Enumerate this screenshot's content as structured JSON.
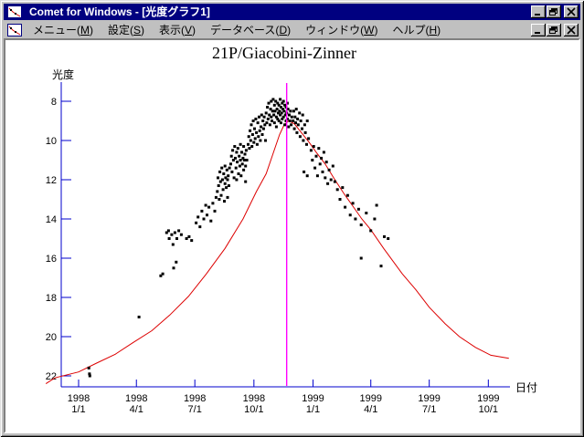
{
  "window": {
    "title": "Comet for Windows - [光度グラフ1]",
    "titlebar_buttons": [
      "minimize",
      "restore",
      "close"
    ],
    "menubar_buttons": [
      "minimize",
      "restore",
      "close"
    ],
    "app_icon": "comet-lightcurve-chart"
  },
  "menu": {
    "items": [
      {
        "key": "menu",
        "label": "メニュー(M)"
      },
      {
        "key": "settings",
        "label": "設定(S)"
      },
      {
        "key": "view",
        "label": "表示(V)"
      },
      {
        "key": "database",
        "label": "データベース(D)"
      },
      {
        "key": "window",
        "label": "ウィンドウ(W)"
      },
      {
        "key": "help",
        "label": "ヘルプ(H)"
      }
    ]
  },
  "chart_data": {
    "type": "scatter",
    "title": "21P/Giacobini-Zinner",
    "xlabel": "日付",
    "ylabel": "光度",
    "y_inverted": true,
    "ylim": [
      7.0,
      22.6
    ],
    "y_ticks": [
      8,
      10,
      12,
      14,
      16,
      18,
      20,
      22
    ],
    "x_ticks": [
      {
        "year": "1998",
        "md": "1/1",
        "day": 0
      },
      {
        "year": "1998",
        "md": "4/1",
        "day": 90
      },
      {
        "year": "1998",
        "md": "7/1",
        "day": 181
      },
      {
        "year": "1998",
        "md": "10/1",
        "day": 273
      },
      {
        "year": "1999",
        "md": "1/1",
        "day": 365
      },
      {
        "year": "1999",
        "md": "4/1",
        "day": 455
      },
      {
        "year": "1999",
        "md": "7/1",
        "day": 546
      },
      {
        "year": "1999",
        "md": "10/1",
        "day": 638
      }
    ],
    "colors": {
      "axis": "#0000cc",
      "tick_text": "#000000",
      "points": "#000000",
      "model_curve": "#dd0000",
      "event_line": "#ff00ff",
      "titlebar": "#000080"
    },
    "event_line_day": 324,
    "model_curve": [
      [
        -51,
        22.4
      ],
      [
        -37,
        22.1
      ],
      [
        0,
        21.8
      ],
      [
        28,
        21.35
      ],
      [
        57,
        20.9
      ],
      [
        85,
        20.3
      ],
      [
        114,
        19.7
      ],
      [
        142,
        18.9
      ],
      [
        171,
        17.95
      ],
      [
        199,
        16.8
      ],
      [
        228,
        15.5
      ],
      [
        256,
        14.0
      ],
      [
        277,
        12.6
      ],
      [
        292,
        11.7
      ],
      [
        303,
        10.65
      ],
      [
        313,
        9.7
      ],
      [
        320,
        9.2
      ],
      [
        327,
        9.0
      ],
      [
        336,
        9.15
      ],
      [
        347,
        9.6
      ],
      [
        359,
        10.1
      ],
      [
        370,
        10.6
      ],
      [
        384,
        11.2
      ],
      [
        398,
        11.95
      ],
      [
        413,
        12.7
      ],
      [
        427,
        13.35
      ],
      [
        441,
        14.0
      ],
      [
        455,
        14.55
      ],
      [
        475,
        15.5
      ],
      [
        504,
        16.8
      ],
      [
        525,
        17.6
      ],
      [
        546,
        18.5
      ],
      [
        571,
        19.35
      ],
      [
        593,
        20.0
      ],
      [
        618,
        20.55
      ],
      [
        642,
        20.95
      ],
      [
        670,
        21.1
      ]
    ],
    "points": [
      [
        16,
        21.6
      ],
      [
        17,
        21.9
      ],
      [
        17.5,
        22.0
      ],
      [
        94,
        19.0
      ],
      [
        128,
        16.9
      ],
      [
        131,
        16.8
      ],
      [
        137,
        14.7
      ],
      [
        140,
        14.6
      ],
      [
        141,
        15.0
      ],
      [
        145,
        14.8
      ],
      [
        147,
        15.3
      ],
      [
        150,
        14.7
      ],
      [
        153,
        15.0
      ],
      [
        156,
        14.6
      ],
      [
        160,
        14.8
      ],
      [
        168,
        15.0
      ],
      [
        172,
        14.9
      ],
      [
        176,
        15.1
      ],
      [
        148,
        16.5
      ],
      [
        152,
        16.2
      ],
      [
        183,
        14.2
      ],
      [
        186,
        13.9
      ],
      [
        189,
        14.4
      ],
      [
        192,
        13.6
      ],
      [
        195,
        14.0
      ],
      [
        198,
        13.3
      ],
      [
        200,
        13.8
      ],
      [
        203,
        13.4
      ],
      [
        206,
        14.1
      ],
      [
        209,
        13.2
      ],
      [
        212,
        13.6
      ],
      [
        214,
        12.9
      ],
      [
        216,
        12.6
      ],
      [
        217,
        11.9
      ],
      [
        218,
        12.3
      ],
      [
        219,
        13.0
      ],
      [
        220,
        11.6
      ],
      [
        221,
        12.1
      ],
      [
        222,
        12.8
      ],
      [
        223,
        11.4
      ],
      [
        224,
        12.0
      ],
      [
        225,
        12.5
      ],
      [
        226,
        11.7
      ],
      [
        227,
        13.1
      ],
      [
        228,
        11.3
      ],
      [
        228,
        12.2
      ],
      [
        229,
        11.9
      ],
      [
        230,
        12.4
      ],
      [
        231,
        11.5
      ],
      [
        232,
        12.0
      ],
      [
        232,
        12.9
      ],
      [
        233,
        11.8
      ],
      [
        234,
        12.3
      ],
      [
        235,
        11.4
      ],
      [
        237,
        11.2
      ],
      [
        238,
        10.8
      ],
      [
        239,
        11.6
      ],
      [
        240,
        10.5
      ],
      [
        241,
        11.0
      ],
      [
        242,
        11.9
      ],
      [
        243,
        10.3
      ],
      [
        244,
        10.9
      ],
      [
        245,
        11.4
      ],
      [
        246,
        10.6
      ],
      [
        246,
        12.0
      ],
      [
        247,
        11.1
      ],
      [
        248,
        10.4
      ],
      [
        249,
        11.7
      ],
      [
        250,
        10.8
      ],
      [
        251,
        11.3
      ],
      [
        252,
        10.2
      ],
      [
        252,
        11.0
      ],
      [
        253,
        11.8
      ],
      [
        254,
        10.6
      ],
      [
        255,
        11.2
      ],
      [
        256,
        10.9
      ],
      [
        257,
        11.5
      ],
      [
        257,
        10.3
      ],
      [
        258,
        11.0
      ],
      [
        259,
        10.7
      ],
      [
        260,
        11.3
      ],
      [
        260,
        12.1
      ],
      [
        261,
        10.5
      ],
      [
        262,
        11.0
      ],
      [
        264,
        10.2
      ],
      [
        265,
        9.8
      ],
      [
        266,
        10.4
      ],
      [
        267,
        9.5
      ],
      [
        268,
        10.0
      ],
      [
        269,
        9.2
      ],
      [
        270,
        10.3
      ],
      [
        271,
        9.7
      ],
      [
        272,
        9.0
      ],
      [
        273,
        10.1
      ],
      [
        274,
        9.4
      ],
      [
        275,
        9.9
      ],
      [
        276,
        8.9
      ],
      [
        277,
        9.6
      ],
      [
        278,
        10.2
      ],
      [
        279,
        9.1
      ],
      [
        280,
        9.8
      ],
      [
        281,
        8.8
      ],
      [
        282,
        9.5
      ],
      [
        283,
        10.0
      ],
      [
        284,
        9.3
      ],
      [
        285,
        8.7
      ],
      [
        286,
        9.7
      ],
      [
        287,
        9.0
      ],
      [
        288,
        9.4
      ],
      [
        289,
        8.8
      ],
      [
        290,
        9.2
      ],
      [
        291,
        10.0
      ],
      [
        292,
        8.6
      ],
      [
        293,
        9.1
      ],
      [
        294,
        8.3
      ],
      [
        295,
        8.9
      ],
      [
        296,
        8.1
      ],
      [
        297,
        8.7
      ],
      [
        298,
        9.2
      ],
      [
        299,
        8.4
      ],
      [
        300,
        8.8
      ],
      [
        300,
        8.0
      ],
      [
        301,
        9.0
      ],
      [
        302,
        8.5
      ],
      [
        303,
        7.9
      ],
      [
        304,
        8.7
      ],
      [
        305,
        8.2
      ],
      [
        305,
        9.1
      ],
      [
        306,
        8.5
      ],
      [
        307,
        8.0
      ],
      [
        308,
        8.8
      ],
      [
        308,
        9.3
      ],
      [
        309,
        8.4
      ],
      [
        310,
        8.1
      ],
      [
        310,
        8.9
      ],
      [
        311,
        8.6
      ],
      [
        312,
        8.2
      ],
      [
        312,
        9.0
      ],
      [
        313,
        8.5
      ],
      [
        314,
        7.9
      ],
      [
        314,
        8.7
      ],
      [
        315,
        8.3
      ],
      [
        315,
        9.1
      ],
      [
        316,
        8.6
      ],
      [
        317,
        8.1
      ],
      [
        317,
        8.9
      ],
      [
        318,
        8.4
      ],
      [
        319,
        8.8
      ],
      [
        319,
        8.0
      ],
      [
        320,
        8.5
      ],
      [
        321,
        9.2
      ],
      [
        321,
        8.2
      ],
      [
        322,
        8.7
      ],
      [
        323,
        8.3
      ],
      [
        323,
        9.0
      ],
      [
        324,
        8.6
      ],
      [
        325,
        8.1
      ],
      [
        325,
        8.9
      ],
      [
        326,
        8.4
      ],
      [
        327,
        9.3
      ],
      [
        328,
        8.7
      ],
      [
        329,
        9.0
      ],
      [
        330,
        8.5
      ],
      [
        331,
        9.2
      ],
      [
        332,
        8.8
      ],
      [
        334,
        9.0
      ],
      [
        335,
        8.5
      ],
      [
        336,
        9.4
      ],
      [
        337,
        8.8
      ],
      [
        338,
        9.1
      ],
      [
        339,
        8.4
      ],
      [
        340,
        9.6
      ],
      [
        341,
        8.9
      ],
      [
        342,
        9.2
      ],
      [
        344,
        8.6
      ],
      [
        345,
        9.8
      ],
      [
        346,
        9.0
      ],
      [
        348,
        9.4
      ],
      [
        349,
        8.7
      ],
      [
        350,
        10.0
      ],
      [
        351,
        11.6
      ],
      [
        352,
        9.2
      ],
      [
        353,
        9.6
      ],
      [
        355,
        10.2
      ],
      [
        356,
        11.8
      ],
      [
        356,
        9.0
      ],
      [
        358,
        9.9
      ],
      [
        362,
        10.5
      ],
      [
        364,
        11.0
      ],
      [
        366,
        10.3
      ],
      [
        368,
        11.4
      ],
      [
        370,
        10.8
      ],
      [
        372,
        11.8
      ],
      [
        374,
        10.4
      ],
      [
        376,
        11.2
      ],
      [
        378,
        10.9
      ],
      [
        380,
        11.6
      ],
      [
        382,
        10.6
      ],
      [
        384,
        11.9
      ],
      [
        386,
        11.1
      ],
      [
        388,
        12.2
      ],
      [
        390,
        11.5
      ],
      [
        393,
        12.0
      ],
      [
        396,
        11.3
      ],
      [
        399,
        12.1
      ],
      [
        403,
        12.5
      ],
      [
        407,
        13.0
      ],
      [
        411,
        12.4
      ],
      [
        415,
        13.4
      ],
      [
        419,
        12.8
      ],
      [
        423,
        13.8
      ],
      [
        427,
        13.2
      ],
      [
        431,
        14.0
      ],
      [
        436,
        13.5
      ],
      [
        440,
        16.0
      ],
      [
        440,
        14.3
      ],
      [
        448,
        13.7
      ],
      [
        455,
        14.6
      ],
      [
        461,
        14.0
      ],
      [
        464,
        13.3
      ],
      [
        471,
        16.4
      ],
      [
        476,
        14.9
      ],
      [
        482,
        15.0
      ]
    ]
  }
}
